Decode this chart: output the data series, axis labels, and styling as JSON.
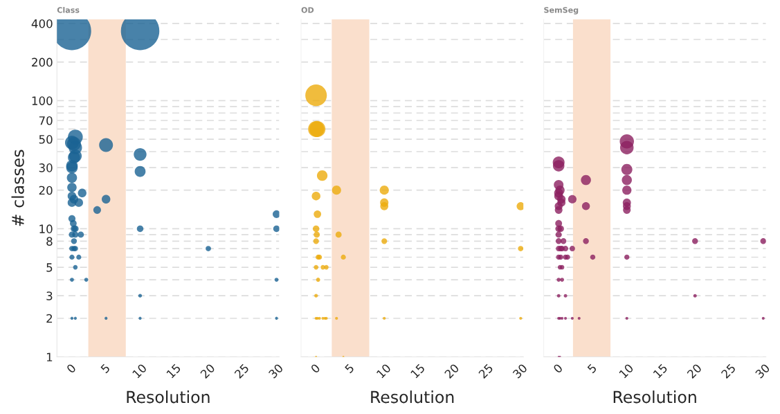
{
  "chart_data": [
    {
      "type": "bubble",
      "title": "Class",
      "xlabel": "Resolution",
      "ylabel": "# classes",
      "color": "#1a6394",
      "log": true,
      "grid": "y",
      "xlim": [
        -2.2,
        30.4
      ],
      "ylim": [
        1,
        430
      ],
      "xticks": [
        0,
        5,
        10,
        15,
        20,
        25,
        30
      ],
      "yticks": [
        1,
        2,
        3,
        {
          "value": 4,
          "label": null
        },
        5,
        {
          "value": 6,
          "label": null
        },
        {
          "value": 7,
          "label": null
        },
        8,
        {
          "value": 9,
          "label": null
        },
        10,
        20,
        30,
        {
          "value": 40,
          "label": null
        },
        50,
        {
          "value": 60,
          "label": null
        },
        70,
        {
          "value": 80,
          "label": null
        },
        {
          "value": 90,
          "label": null
        },
        100,
        200,
        {
          "value": 300,
          "label": null
        },
        400
      ],
      "bands": [
        {
          "axis": "x",
          "from": 2.4,
          "to": 7.9,
          "color": "#fadfcc"
        }
      ],
      "x": [
        0,
        10,
        0.5,
        0,
        0.3,
        0.5,
        5,
        10,
        0.5,
        0.3,
        0,
        0,
        10,
        0,
        0,
        1.5,
        0,
        0.3,
        5,
        1,
        0,
        3.7,
        30,
        0,
        0.2,
        0.3,
        0.5,
        10,
        30,
        0,
        0.5,
        1.3,
        0.3,
        0,
        0.3,
        0.5,
        20,
        0,
        1,
        0.5,
        0,
        2.1,
        30,
        10,
        0,
        0.5,
        5,
        10,
        30
      ],
      "values": [
        350,
        350,
        52,
        47,
        46,
        43,
        45,
        38,
        37,
        36,
        31,
        30,
        28,
        25,
        21,
        19,
        18,
        17,
        17,
        16,
        16,
        14,
        13,
        12,
        11,
        10,
        10,
        10,
        10,
        9,
        9,
        9,
        8,
        7,
        7,
        7,
        7,
        6,
        6,
        5,
        4,
        4,
        4,
        3,
        2,
        2,
        2,
        2,
        2
      ],
      "sizes": [
        1,
        1,
        0.15,
        0.13,
        0.13,
        0.12,
        0.13,
        0.11,
        0.11,
        0.1,
        0.09,
        0.09,
        0.08,
        0.07,
        0.06,
        0.05,
        0.05,
        0.05,
        0.05,
        0.05,
        0.05,
        0.04,
        0.04,
        0.034,
        0.031,
        0.029,
        0.029,
        0.029,
        0.029,
        0.026,
        0.026,
        0.026,
        0.023,
        0.02,
        0.02,
        0.02,
        0.02,
        0.017,
        0.017,
        0.014,
        0.011,
        0.011,
        0.011,
        0.009,
        0.006,
        0.006,
        0.006,
        0.006,
        0.006
      ]
    },
    {
      "type": "bubble",
      "title": "OD",
      "xlabel": "Resolution",
      "color": "#ecab0c",
      "log": true,
      "grid": "y",
      "tick_labels": "x",
      "xlim": [
        -2.2,
        30.4
      ],
      "ylim": [
        1,
        430
      ],
      "xticks": [
        0,
        5,
        10,
        15,
        20,
        25,
        30
      ],
      "yticks": [
        1,
        2,
        3,
        {
          "value": 4,
          "label": null
        },
        5,
        {
          "value": 6,
          "label": null
        },
        {
          "value": 7,
          "label": null
        },
        8,
        {
          "value": 9,
          "label": null
        },
        10,
        20,
        30,
        {
          "value": 40,
          "label": null
        },
        50,
        {
          "value": 60,
          "label": null
        },
        70,
        {
          "value": 80,
          "label": null
        },
        {
          "value": 90,
          "label": null
        },
        100,
        200,
        {
          "value": 300,
          "label": null
        },
        400
      ],
      "bands": [
        {
          "axis": "x",
          "from": 2.3,
          "to": 7.8,
          "color": "#fadfcc"
        }
      ],
      "x": [
        0,
        0,
        0.2,
        0.9,
        3,
        10,
        0,
        10,
        10,
        30,
        0.2,
        0,
        0.1,
        3.3,
        0,
        10,
        30,
        0.3,
        0.5,
        4,
        0,
        1,
        1.5,
        0.3,
        0,
        0,
        0.2,
        0.5,
        1,
        1.3,
        1.5,
        3,
        10,
        30,
        0,
        4
      ],
      "values": [
        110,
        60,
        60,
        26,
        20,
        20,
        18,
        16,
        15,
        15,
        13,
        10,
        9,
        9,
        8,
        8,
        7,
        6,
        6,
        6,
        5,
        5,
        5,
        4,
        3,
        2,
        2,
        2,
        2,
        2,
        2,
        2,
        2,
        2,
        1,
        1
      ],
      "sizes": [
        1,
        0.55,
        0.55,
        0.24,
        0.18,
        0.18,
        0.16,
        0.15,
        0.14,
        0.14,
        0.12,
        0.09,
        0.08,
        0.08,
        0.07,
        0.07,
        0.064,
        0.055,
        0.055,
        0.055,
        0.045,
        0.045,
        0.045,
        0.036,
        0.027,
        0.018,
        0.018,
        0.018,
        0.018,
        0.018,
        0.018,
        0.018,
        0.018,
        0.018,
        0.009,
        0.009
      ]
    },
    {
      "type": "bubble",
      "title": "SemSeg",
      "xlabel": "Resolution",
      "color": "#8c2160",
      "log": true,
      "grid": "y",
      "tick_labels": "x",
      "xlim": [
        -2.2,
        30.4
      ],
      "ylim": [
        1,
        430
      ],
      "xticks": [
        0,
        5,
        10,
        15,
        20,
        25,
        30
      ],
      "yticks": [
        1,
        2,
        3,
        {
          "value": 4,
          "label": null
        },
        5,
        {
          "value": 6,
          "label": null
        },
        {
          "value": 7,
          "label": null
        },
        8,
        {
          "value": 9,
          "label": null
        },
        10,
        20,
        30,
        {
          "value": 40,
          "label": null
        },
        50,
        {
          "value": 60,
          "label": null
        },
        70,
        {
          "value": 80,
          "label": null
        },
        {
          "value": 90,
          "label": null
        },
        100,
        200,
        {
          "value": 300,
          "label": null
        },
        400
      ],
      "bands": [
        {
          "axis": "x",
          "from": 2.1,
          "to": 7.6,
          "color": "#fadfcc"
        }
      ],
      "x": [
        10,
        10,
        0,
        0,
        10,
        4,
        10,
        0,
        0.2,
        10,
        0,
        0,
        2,
        0.4,
        0.4,
        10,
        0,
        4,
        10,
        0,
        10,
        0,
        0,
        0.3,
        0,
        0,
        0.7,
        4,
        20,
        30,
        0,
        0.3,
        0.5,
        1,
        2,
        0,
        0.3,
        1,
        1.3,
        5,
        10,
        0.2,
        0.5,
        0,
        0.5,
        0,
        1,
        20,
        0,
        0.2,
        0.5,
        1,
        2,
        3,
        10,
        30,
        0,
        0.2
      ],
      "values": [
        48,
        43,
        33,
        31,
        29,
        24,
        24,
        22,
        20,
        20,
        19,
        18,
        17,
        17,
        16,
        16,
        15,
        15,
        15,
        14,
        14,
        11,
        10,
        10,
        9,
        8,
        8,
        8,
        8,
        8,
        7,
        7,
        7,
        7,
        7,
        6,
        6,
        6,
        6,
        6,
        6,
        5,
        5,
        4,
        4,
        3,
        3,
        3,
        2,
        2,
        2,
        2,
        2,
        2,
        2,
        2,
        1,
        1
      ],
      "sizes": [
        1,
        0.9,
        0.69,
        0.65,
        0.6,
        0.5,
        0.5,
        0.46,
        0.42,
        0.42,
        0.4,
        0.38,
        0.35,
        0.35,
        0.33,
        0.33,
        0.31,
        0.31,
        0.31,
        0.29,
        0.29,
        0.23,
        0.21,
        0.21,
        0.19,
        0.17,
        0.17,
        0.17,
        0.17,
        0.17,
        0.15,
        0.15,
        0.15,
        0.15,
        0.15,
        0.13,
        0.13,
        0.13,
        0.13,
        0.13,
        0.13,
        0.1,
        0.1,
        0.08,
        0.08,
        0.06,
        0.06,
        0.06,
        0.04,
        0.04,
        0.04,
        0.04,
        0.04,
        0.04,
        0.04,
        0.04,
        0.02,
        0.02
      ]
    }
  ]
}
